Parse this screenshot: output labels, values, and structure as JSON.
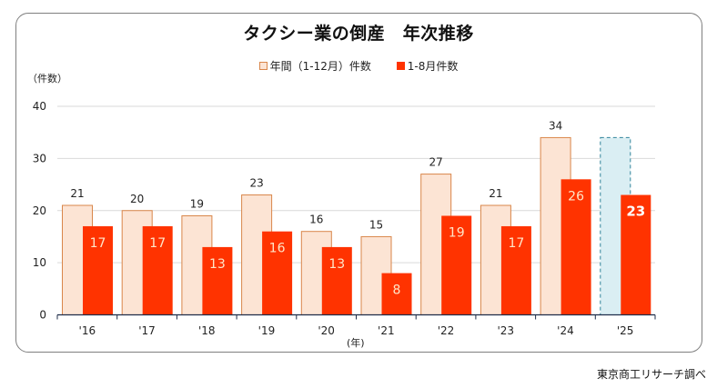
{
  "chart_data": {
    "type": "bar",
    "title": "タクシー業の倒産　年次推移",
    "ylabel": "（件数）",
    "xlabel": "(年)",
    "ylim": [
      0,
      40
    ],
    "yticks": [
      0,
      10,
      20,
      30,
      40
    ],
    "grid": true,
    "legend_position": "top",
    "categories": [
      "'16",
      "'17",
      "'18",
      "'19",
      "'20",
      "'21",
      "'22",
      "'23",
      "'24",
      "'25"
    ],
    "series": [
      {
        "name": "年間（1-12月）件数",
        "values": [
          21,
          20,
          19,
          23,
          16,
          15,
          27,
          21,
          34,
          null
        ],
        "color": "#fce4d4",
        "stroke": "#d9864a"
      },
      {
        "name": "1-8月件数",
        "values": [
          17,
          17,
          13,
          16,
          13,
          8,
          19,
          17,
          26,
          23
        ],
        "color": "#ff3300"
      }
    ],
    "placeholder_2025_value": 34,
    "placeholder_color": "#daeef3",
    "placeholder_stroke": "#31849b"
  },
  "legend": {
    "items": [
      {
        "label": "年間（1-12月）件数",
        "color": "#fce4d4",
        "stroke": "#d9864a"
      },
      {
        "label": "1-8月件数",
        "color": "#ff3300"
      }
    ]
  },
  "source": "東京商工リサーチ調べ"
}
